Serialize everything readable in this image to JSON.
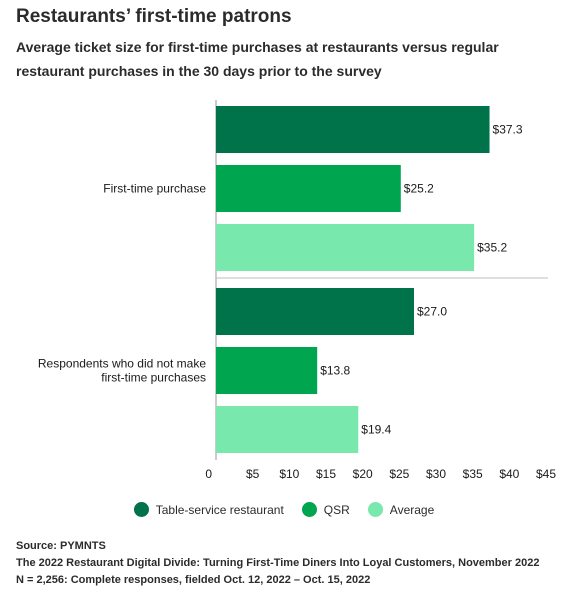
{
  "header": {
    "title": "Restaurants’ first-time patrons",
    "subtitle": "Average ticket size for first-time purchases at restaurants versus regular restaurant purchases in the 30 days prior to the survey"
  },
  "footer": {
    "source": "Source: PYMNTS",
    "line2": "The 2022 Restaurant Digital Divide: Turning First-Time Diners Into Loyal Customers, November 2022",
    "line3": "N = 2,256: Complete responses, fielded Oct. 12, 2022 – Oct. 15, 2022"
  },
  "chart_data": {
    "type": "bar",
    "orientation": "horizontal",
    "categories": [
      "First-time purchase",
      "Respondents who did not make first-time purchases"
    ],
    "category_lines": [
      [
        "First-time purchase"
      ],
      [
        "Respondents who did not make",
        "first-time purchases"
      ]
    ],
    "series": [
      {
        "name": "Table-service restaurant",
        "color": "#00734a",
        "values": [
          37.3,
          27.0
        ],
        "labels": [
          "$37.3",
          "$27.0"
        ]
      },
      {
        "name": "QSR",
        "color": "#00a64f",
        "values": [
          25.2,
          13.8
        ],
        "labels": [
          "$25.2",
          "$13.8"
        ]
      },
      {
        "name": "Average",
        "color": "#79e8ad",
        "values": [
          35.2,
          19.4
        ],
        "labels": [
          "$35.2",
          "$19.4"
        ]
      }
    ],
    "xlim": [
      0,
      45
    ],
    "xticks": [
      0,
      5,
      10,
      15,
      20,
      25,
      30,
      35,
      40,
      45
    ],
    "xtick_labels": [
      "0",
      "$5",
      "$10",
      "$15",
      "$20",
      "$25",
      "$30",
      "$35",
      "$40",
      "$45"
    ],
    "legend_position": "bottom",
    "grid": false
  }
}
